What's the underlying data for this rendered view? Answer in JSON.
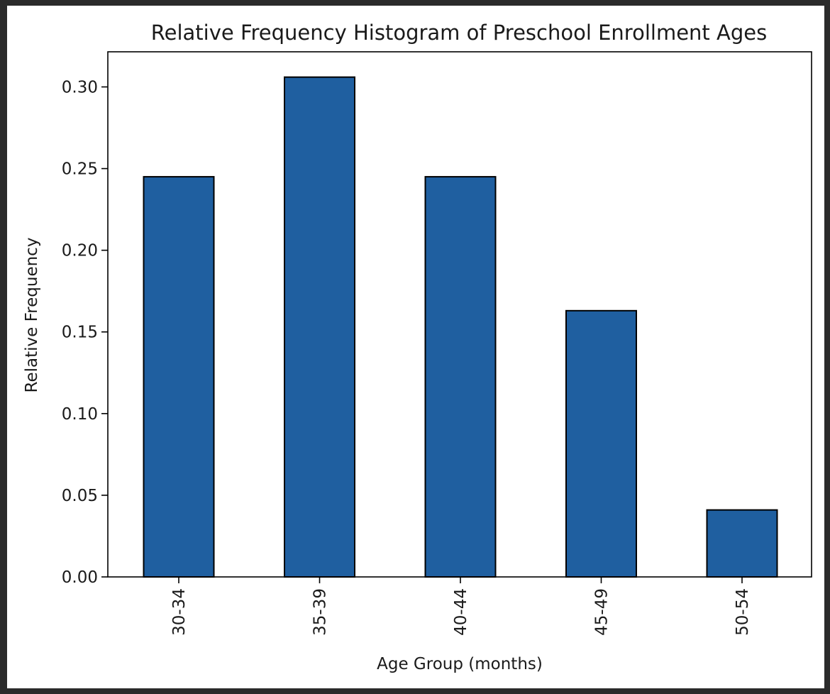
{
  "chart_data": {
    "type": "bar",
    "title": "Relative Frequency Histogram of Preschool Enrollment Ages",
    "xlabel": "Age Group (months)",
    "ylabel": "Relative Frequency",
    "categories": [
      "30-34",
      "35-39",
      "40-44",
      "45-49",
      "50-54"
    ],
    "values": [
      0.245,
      0.306,
      0.245,
      0.163,
      0.041
    ],
    "ylim": [
      0,
      0.32
    ],
    "yticks": [
      "0.00",
      "0.05",
      "0.10",
      "0.15",
      "0.20",
      "0.25",
      "0.30"
    ],
    "ytick_values": [
      0,
      0.05,
      0.1,
      0.15,
      0.2,
      0.25,
      0.3
    ],
    "grid": false,
    "legend": "none",
    "bar_color": "#1f5fa0",
    "edge_color": "#000000"
  }
}
